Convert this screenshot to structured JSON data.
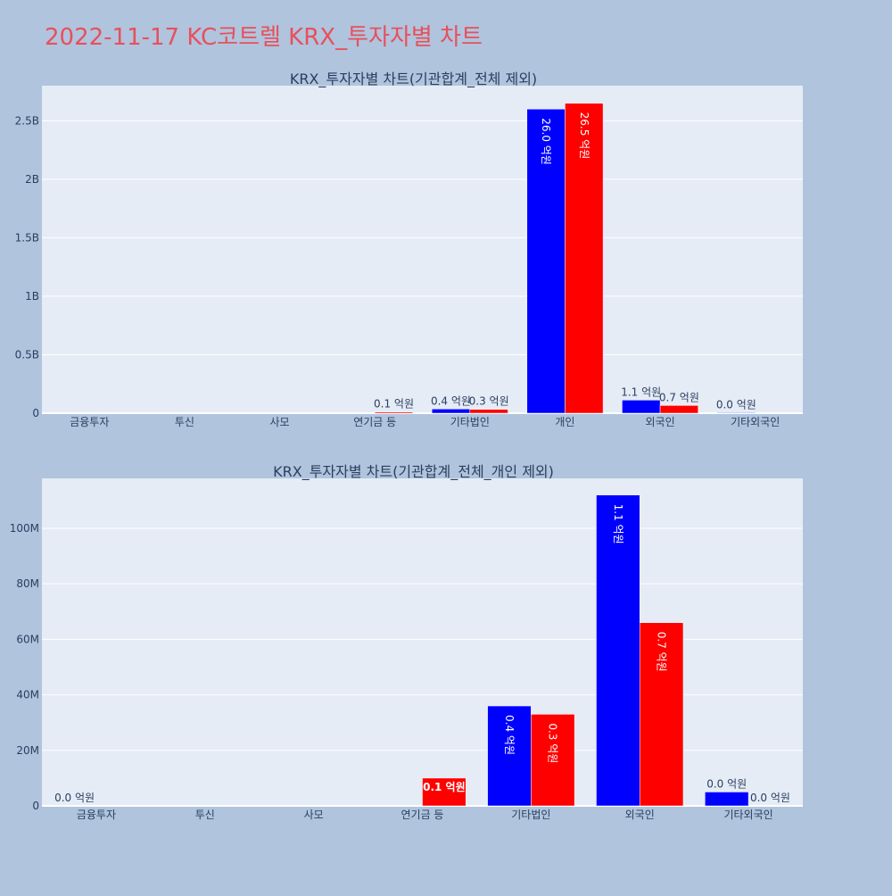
{
  "page": {
    "title": "2022-11-17 KC코트렐 KRX_투자자별 차트",
    "title_color": "#e8505b"
  },
  "colors": {
    "buy": "#0000ff",
    "sell": "#ff0000",
    "plot_bg": "#e5ecf6",
    "page_bg": "#b0c4de",
    "text": "#2a3f5f"
  },
  "chart_data": [
    {
      "type": "bar",
      "title": "KRX_투자자별 차트(기관합계_전체 제외)",
      "categories": [
        "금융투자",
        "투신",
        "사모",
        "연기금 등",
        "기타법인",
        "개인",
        "외국인",
        "기타외국인"
      ],
      "ylim": [
        0,
        2800000000
      ],
      "yticks": [
        0,
        500000000,
        1000000000,
        1500000000,
        2000000000,
        2500000000
      ],
      "ytick_labels": [
        "0",
        "0.5B",
        "1B",
        "1.5B",
        "2B",
        "2.5B"
      ],
      "grid": true,
      "series": [
        {
          "values": [
            0,
            0,
            0,
            0,
            36000000,
            2600000000,
            112000000,
            5000000
          ],
          "labels": [
            "",
            "",
            "",
            "",
            "0.4 억원",
            "26.0 억원",
            "1.1 억원",
            "0.0 억원"
          ]
        },
        {
          "values": [
            0,
            0,
            0,
            10000000,
            33000000,
            2650000000,
            66000000,
            0
          ],
          "labels": [
            "",
            "",
            "",
            "0.1 억원",
            "0.3 억원",
            "26.5 억원",
            "0.7 억원",
            ""
          ]
        }
      ]
    },
    {
      "type": "bar",
      "title": "KRX_투자자별 차트(기관합계_전체_개인 제외)",
      "categories": [
        "금융투자",
        "투신",
        "사모",
        "연기금 등",
        "기타법인",
        "외국인",
        "기타외국인"
      ],
      "ylim": [
        0,
        118000000
      ],
      "yticks": [
        0,
        20000000,
        40000000,
        60000000,
        80000000,
        100000000
      ],
      "ytick_labels": [
        "0",
        "20M",
        "40M",
        "60M",
        "80M",
        "100M"
      ],
      "grid": true,
      "series": [
        {
          "values": [
            0,
            0,
            0,
            0,
            36000000,
            112000000,
            5000000
          ],
          "labels": [
            "0.0 억원",
            "",
            "",
            "",
            "0.4 억원",
            "1.1 억원",
            "0.0 억원"
          ]
        },
        {
          "values": [
            0,
            0,
            0,
            10000000,
            33000000,
            66000000,
            0
          ],
          "labels": [
            "",
            "",
            "",
            "0.1 억원",
            "0.3 억원",
            "0.7 억원",
            "0.0 억원"
          ]
        }
      ]
    }
  ]
}
